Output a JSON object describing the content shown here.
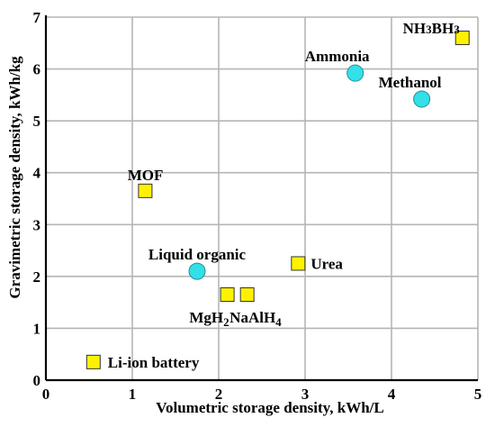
{
  "chart_data": {
    "type": "scatter",
    "xlabel": "Volumetric storage density, kWh/L",
    "ylabel": "Gravimetric storage density, kWh/kg",
    "xlim": [
      0,
      5
    ],
    "ylim": [
      0,
      7
    ],
    "x_ticks": [
      "0",
      "1",
      "2",
      "3",
      "4",
      "5"
    ],
    "y_ticks": [
      "0",
      "1",
      "2",
      "3",
      "4",
      "5",
      "6",
      "7"
    ],
    "grid": true,
    "marker_colors": {
      "square": "#FFF200",
      "circle": "#33E0E8"
    },
    "points": [
      {
        "label": "Li-ion battery",
        "marker": "square",
        "x": 0.55,
        "y": 0.35
      },
      {
        "label": "MOF",
        "marker": "square",
        "x": 1.15,
        "y": 3.65
      },
      {
        "label": "Liquid organic",
        "marker": "circle",
        "x": 1.75,
        "y": 2.1
      },
      {
        "label": "MgH2",
        "label_main": "MgH",
        "label_sub": "2",
        "marker": "square",
        "x": 2.1,
        "y": 1.65
      },
      {
        "label": "NaAlH4",
        "label_main": "NaAlH",
        "label_sub": "4",
        "marker": "square",
        "x": 2.33,
        "y": 1.65
      },
      {
        "label": "Urea",
        "marker": "square",
        "x": 2.92,
        "y": 2.25
      },
      {
        "label": "Ammonia",
        "marker": "circle",
        "x": 3.58,
        "y": 5.92
      },
      {
        "label": "Methanol",
        "marker": "circle",
        "x": 4.35,
        "y": 5.42
      },
      {
        "label": "NH3BH3",
        "marker": "square",
        "x": 4.82,
        "y": 6.6
      }
    ]
  }
}
